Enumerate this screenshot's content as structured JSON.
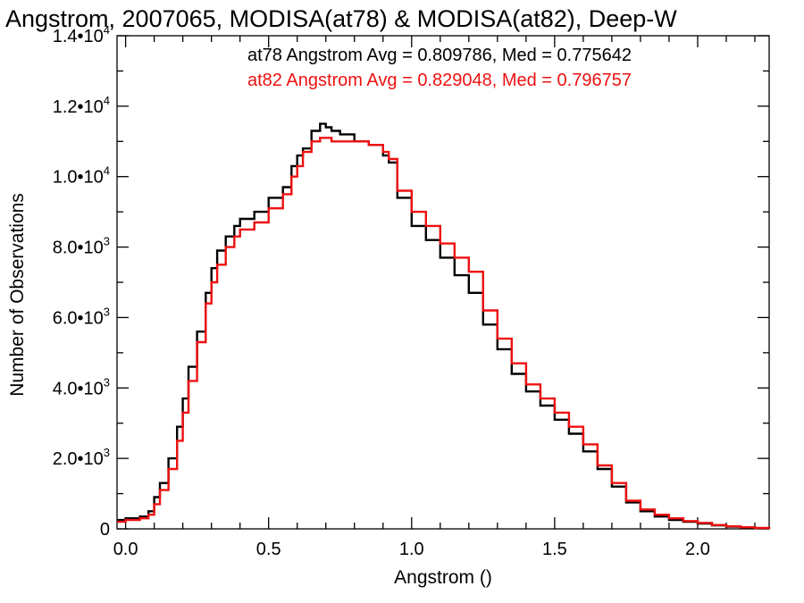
{
  "chart_data": {
    "type": "line",
    "title": "Angstrom, 2007065, MODISA(at78) & MODISA(at82), Deep-W",
    "xlabel": "Angstrom ()",
    "ylabel": "Number of Observations",
    "xlim": [
      -0.03,
      2.25
    ],
    "ylim": [
      0,
      14000
    ],
    "grid": false,
    "x_ticks": [
      {
        "value": 0.0,
        "label": "0.0"
      },
      {
        "value": 0.5,
        "label": "0.5"
      },
      {
        "value": 1.0,
        "label": "1.0"
      },
      {
        "value": 1.5,
        "label": "1.5"
      },
      {
        "value": 2.0,
        "label": "2.0"
      }
    ],
    "y_ticks": [
      {
        "value": 0,
        "mant": "0",
        "exp": ""
      },
      {
        "value": 2000,
        "mant": "2.0•10",
        "exp": "3"
      },
      {
        "value": 4000,
        "mant": "4.0•10",
        "exp": "3"
      },
      {
        "value": 6000,
        "mant": "6.0•10",
        "exp": "3"
      },
      {
        "value": 8000,
        "mant": "8.0•10",
        "exp": "3"
      },
      {
        "value": 10000,
        "mant": "1.0•10",
        "exp": "4"
      },
      {
        "value": 12000,
        "mant": "1.2•10",
        "exp": "4"
      },
      {
        "value": 14000,
        "mant": "1.4•10",
        "exp": "4"
      }
    ],
    "annotations": [
      {
        "text": "at78 Angstrom Avg = 0.809786, Med = 0.775642",
        "color": "#000000"
      },
      {
        "text": "at82 Angstrom Avg = 0.829048, Med = 0.796757",
        "color": "#ee1111"
      }
    ],
    "series": [
      {
        "color": "#000000",
        "x": [
          -0.03,
          0.0,
          0.05,
          0.08,
          0.1,
          0.12,
          0.15,
          0.18,
          0.2,
          0.22,
          0.25,
          0.28,
          0.3,
          0.32,
          0.35,
          0.38,
          0.4,
          0.45,
          0.5,
          0.55,
          0.58,
          0.6,
          0.62,
          0.65,
          0.68,
          0.7,
          0.72,
          0.75,
          0.8,
          0.85,
          0.9,
          0.92,
          0.95,
          1.0,
          1.05,
          1.1,
          1.15,
          1.2,
          1.25,
          1.3,
          1.35,
          1.4,
          1.45,
          1.5,
          1.55,
          1.6,
          1.65,
          1.7,
          1.75,
          1.8,
          1.85,
          1.9,
          1.95,
          2.0,
          2.05,
          2.1,
          2.15,
          2.2,
          2.25
        ],
        "y": [
          250,
          300,
          350,
          500,
          900,
          1300,
          2000,
          2900,
          3700,
          4600,
          5600,
          6700,
          7400,
          7900,
          8300,
          8600,
          8800,
          9000,
          9400,
          9700,
          10300,
          10600,
          10800,
          11300,
          11500,
          11400,
          11300,
          11200,
          11000,
          10900,
          10600,
          10400,
          9400,
          8600,
          8200,
          7700,
          7200,
          6700,
          5800,
          5100,
          4400,
          3900,
          3500,
          3100,
          2700,
          2200,
          1700,
          1200,
          750,
          500,
          350,
          250,
          200,
          150,
          100,
          60,
          40,
          20,
          10
        ]
      },
      {
        "color": "#ee1111",
        "x": [
          -0.03,
          0.0,
          0.05,
          0.08,
          0.1,
          0.12,
          0.15,
          0.18,
          0.2,
          0.22,
          0.25,
          0.28,
          0.3,
          0.32,
          0.35,
          0.38,
          0.4,
          0.45,
          0.5,
          0.55,
          0.58,
          0.6,
          0.62,
          0.65,
          0.68,
          0.7,
          0.72,
          0.75,
          0.8,
          0.85,
          0.9,
          0.92,
          0.95,
          1.0,
          1.05,
          1.1,
          1.15,
          1.2,
          1.25,
          1.3,
          1.35,
          1.4,
          1.45,
          1.5,
          1.55,
          1.6,
          1.65,
          1.7,
          1.75,
          1.8,
          1.85,
          1.9,
          1.95,
          2.0,
          2.05,
          2.1,
          2.15,
          2.2,
          2.25
        ],
        "y": [
          200,
          250,
          300,
          400,
          700,
          1100,
          1700,
          2500,
          3300,
          4200,
          5300,
          6400,
          7000,
          7500,
          8000,
          8300,
          8500,
          8700,
          9100,
          9500,
          10000,
          10300,
          10700,
          11000,
          11100,
          11100,
          11000,
          11000,
          11000,
          10900,
          10700,
          10500,
          9600,
          9000,
          8600,
          8100,
          7700,
          7300,
          6200,
          5400,
          4700,
          4100,
          3700,
          3300,
          2900,
          2400,
          1800,
          1300,
          800,
          550,
          400,
          300,
          220,
          170,
          110,
          70,
          45,
          25,
          10
        ]
      }
    ]
  }
}
